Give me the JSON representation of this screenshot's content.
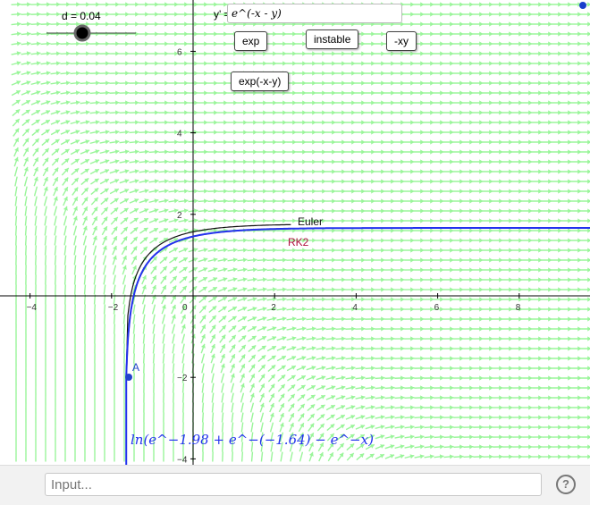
{
  "slider": {
    "label": "d = 0.04",
    "value": 0.04
  },
  "equation": {
    "label": "y' =",
    "value": "e^(-x - y)"
  },
  "buttons": {
    "exp": "exp",
    "instable": "instable",
    "neg_xy": "-xy",
    "exp_neg": "exp(-x-y)"
  },
  "curve_labels": {
    "euler": "Euler",
    "rk2": "RK2",
    "point": "A"
  },
  "formula": "ln(e^−1.98 + e^−(−1.64) − e^−x)",
  "axes": {
    "x_ticks": [
      "−4",
      "−2",
      "0",
      "2",
      "4",
      "6",
      "8"
    ],
    "y_ticks": [
      "6",
      "4",
      "2",
      "−2",
      "−4"
    ]
  },
  "input": {
    "placeholder": "Input..."
  },
  "help": "?",
  "colors": {
    "slope_field": "#9af59a",
    "exact": "#2233ee",
    "euler": "#111111",
    "rk2": "#b01040",
    "point": "#2244cc"
  }
}
